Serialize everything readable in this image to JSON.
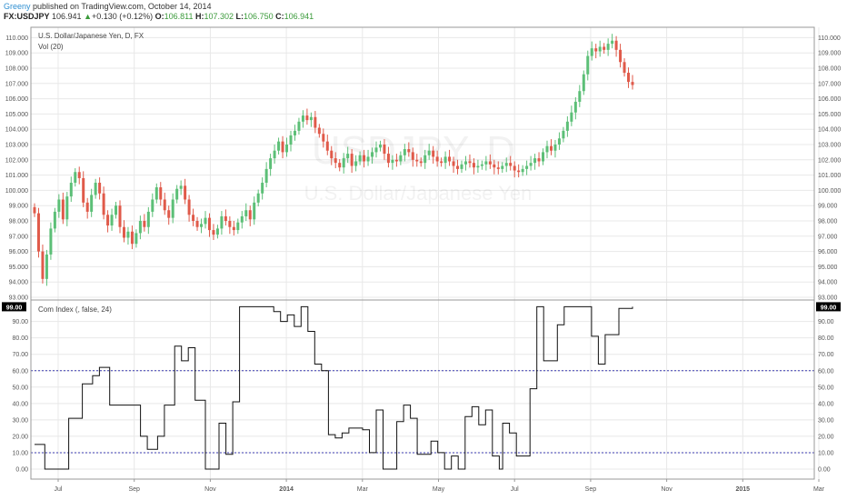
{
  "header": {
    "user": "Greeny",
    "published": " published on TradingView.com, October 14, 2014",
    "symbol": "FX:USDJPY",
    "last": "106.941",
    "arrow": "▲",
    "change": "+0.130 (+0.12%)",
    "o_label": "O:",
    "o_val": "106.811",
    "h_label": "H:",
    "h_val": "107.302",
    "l_label": "L:",
    "l_val": "106.750",
    "c_label": "C:",
    "c_val": "106.941"
  },
  "colors": {
    "up": "#5cbf77",
    "down": "#e05a4a",
    "line": "#111111",
    "band": "#3b3bb0",
    "grid": "#e8e8e8"
  },
  "chart_data": [
    {
      "type": "candlestick",
      "title": "U.S. Dollar/Japanese Yen, D, FX",
      "subtitle": "Vol (20)",
      "watermark": "USDJPY, D",
      "watermark_sub": "U.S. Dollar/Japanese Yen",
      "x_ticks": [
        "Jul",
        "Sep",
        "Nov",
        "2014",
        "Mar",
        "May",
        "Jul",
        "Sep",
        "Nov",
        "2015",
        "Mar"
      ],
      "y_ticks": [
        "110.000",
        "109.000",
        "108.000",
        "107.000",
        "106.000",
        "105.000",
        "104.000",
        "103.000",
        "102.000",
        "101.000",
        "100.000",
        "99.000",
        "98.000",
        "97.000",
        "96.000",
        "95.000",
        "94.000",
        "93.000"
      ],
      "ylim": [
        93.0,
        110.5
      ],
      "series_close": [
        98.5,
        96.0,
        94.2,
        95.8,
        97.5,
        98.6,
        99.4,
        98.1,
        99.6,
        100.5,
        101.2,
        100.8,
        99.2,
        98.6,
        99.7,
        100.5,
        99.8,
        98.4,
        97.7,
        98.4,
        99.0,
        97.6,
        96.9,
        97.3,
        96.5,
        97.2,
        98.0,
        97.6,
        98.6,
        99.4,
        100.2,
        99.4,
        98.7,
        98.2,
        99.4,
        100.1,
        100.3,
        99.4,
        98.4,
        98.0,
        97.6,
        97.8,
        98.2,
        97.4,
        97.1,
        97.5,
        98.3,
        98.0,
        97.6,
        97.4,
        97.9,
        98.3,
        98.7,
        98.1,
        99.2,
        99.8,
        100.5,
        101.4,
        102.1,
        102.6,
        103.2,
        102.5,
        103.0,
        103.6,
        103.9,
        104.5,
        104.9,
        104.6,
        104.8,
        104.1,
        103.7,
        103.2,
        102.6,
        102.1,
        101.8,
        101.5,
        102.1,
        102.4,
        101.6,
        101.9,
        102.3,
        101.9,
        102.2,
        102.5,
        102.8,
        103.0,
        102.4,
        101.8,
        102.0,
        101.9,
        102.3,
        102.7,
        102.5,
        102.0,
        101.9,
        101.8,
        102.3,
        102.6,
        102.2,
        101.9,
        101.8,
        102.2,
        101.9,
        101.6,
        101.4,
        101.7,
        101.9,
        101.8,
        101.5,
        101.6,
        101.7,
        101.9,
        101.7,
        101.5,
        101.4,
        101.6,
        101.8,
        101.6,
        101.3,
        101.2,
        101.4,
        101.6,
        101.8,
        102.1,
        101.9,
        102.5,
        102.9,
        102.6,
        103.0,
        103.4,
        103.9,
        104.5,
        105.1,
        105.8,
        106.5,
        107.6,
        108.8,
        109.3,
        109.1,
        109.4,
        109.2,
        109.6,
        109.8,
        109.2,
        108.4,
        107.7,
        107.1,
        106.9
      ],
      "volume_panel": {
        "title": "Com Index (, false, 24)",
        "last_label": "99.00",
        "y_ticks": [
          "90.00",
          "80.00",
          "70.00",
          "60.00",
          "50.00",
          "40.00",
          "30.00",
          "20.00",
          "10.00",
          "0.00"
        ],
        "ylim": [
          -5,
          102
        ],
        "bands": [
          60,
          10
        ],
        "steps": [
          [
            0,
            15
          ],
          [
            3,
            0
          ],
          [
            10,
            31
          ],
          [
            14,
            52
          ],
          [
            17,
            57
          ],
          [
            19,
            62
          ],
          [
            22,
            39
          ],
          [
            31,
            20
          ],
          [
            33,
            12
          ],
          [
            35,
            12
          ],
          [
            36,
            20
          ],
          [
            38,
            39
          ],
          [
            41,
            75
          ],
          [
            43,
            66
          ],
          [
            45,
            74
          ],
          [
            47,
            42
          ],
          [
            50,
            0
          ],
          [
            53,
            0
          ],
          [
            54,
            28
          ],
          [
            56,
            9
          ],
          [
            58,
            41
          ],
          [
            60,
            99
          ],
          [
            70,
            96
          ],
          [
            72,
            90
          ],
          [
            74,
            94
          ],
          [
            76,
            87
          ],
          [
            78,
            99
          ],
          [
            80,
            84
          ],
          [
            82,
            64
          ],
          [
            84,
            60
          ],
          [
            86,
            21
          ],
          [
            88,
            19
          ],
          [
            90,
            22
          ],
          [
            92,
            25
          ],
          [
            96,
            24
          ],
          [
            98,
            10
          ],
          [
            100,
            36
          ],
          [
            102,
            0
          ],
          [
            104,
            0
          ],
          [
            106,
            29
          ],
          [
            108,
            39
          ],
          [
            110,
            31
          ],
          [
            112,
            9
          ],
          [
            114,
            9
          ],
          [
            116,
            17
          ],
          [
            118,
            10
          ],
          [
            120,
            0
          ],
          [
            122,
            8
          ],
          [
            124,
            0
          ],
          [
            126,
            32
          ],
          [
            128,
            38
          ],
          [
            130,
            27
          ],
          [
            132,
            36
          ],
          [
            134,
            8
          ],
          [
            136,
            0
          ],
          [
            137,
            28
          ],
          [
            139,
            22
          ],
          [
            141,
            8
          ],
          [
            143,
            8
          ],
          [
            145,
            49
          ],
          [
            147,
            99
          ],
          [
            149,
            66
          ],
          [
            151,
            66
          ],
          [
            153,
            88
          ],
          [
            155,
            99
          ],
          [
            161,
            99
          ],
          [
            163,
            81
          ],
          [
            165,
            64
          ],
          [
            167,
            82
          ],
          [
            169,
            82
          ],
          [
            171,
            98
          ],
          [
            175,
            99
          ]
        ]
      }
    }
  ]
}
